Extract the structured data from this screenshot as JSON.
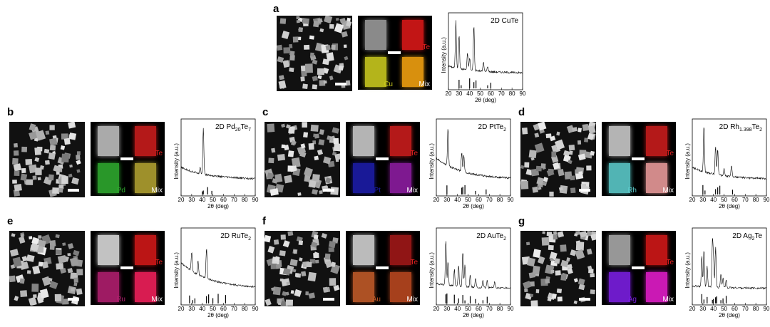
{
  "panels": [
    {
      "letter": "a",
      "title": "2D CuTe",
      "sub": "",
      "title2": "",
      "element": "Cu",
      "te": "Te",
      "mix": "Mix",
      "colors": {
        "el": "#c8c81e",
        "te": "#d81818",
        "mix": "#f0a010",
        "grey": "#9a9a9a"
      },
      "ticks": [
        "20",
        "30",
        "40",
        "50",
        "60",
        "70",
        "80",
        "90"
      ],
      "refs": [
        30,
        32,
        40,
        44,
        46,
        57,
        60
      ],
      "peaks": [
        [
          27,
          1.0
        ],
        [
          30,
          0.7
        ],
        [
          38,
          0.35
        ],
        [
          44,
          0.95
        ],
        [
          40,
          0.25
        ],
        [
          53,
          0.2
        ],
        [
          57,
          0.12
        ]
      ],
      "bg": 0.15
    },
    {
      "letter": "b",
      "title": "2D Pd",
      "sub": "20",
      "title2": "Te",
      "sub2": "7",
      "element": "Pd",
      "te": "Te",
      "mix": "Mix",
      "colors": {
        "el": "#2ea82e",
        "te": "#c81c1c",
        "mix": "#b0a030",
        "grey": "#bdbdbd"
      },
      "ticks": [
        "20",
        "30",
        "40",
        "50",
        "60",
        "70",
        "80",
        "90"
      ],
      "refs": [
        40,
        41,
        45,
        49
      ],
      "peaks": [
        [
          41,
          1.0
        ],
        [
          38,
          0.15
        ]
      ],
      "bg": 0.25
    },
    {
      "letter": "c",
      "title": "2D PtTe",
      "sub": "2",
      "title2": "",
      "element": "Pt",
      "te": "Te",
      "mix": "Mix",
      "colors": {
        "el": "#1c1ca8",
        "te": "#c81c1c",
        "mix": "#8c1ca0",
        "grey": "#c8c8c8"
      },
      "ticks": [
        "20",
        "30",
        "40",
        "50",
        "60",
        "70",
        "80",
        "90"
      ],
      "refs": [
        30,
        44,
        45,
        47,
        57,
        67
      ],
      "peaks": [
        [
          31,
          0.8
        ],
        [
          44,
          0.4
        ],
        [
          46,
          0.35
        ]
      ],
      "bg": 0.45
    },
    {
      "letter": "d",
      "title": "2D Rh",
      "sub": "1.398",
      "title2": "Te",
      "sub2": "2",
      "element": "Rh",
      "te": "Te",
      "mix": "Mix",
      "colors": {
        "el": "#5ac8c8",
        "te": "#c81c1c",
        "mix": "#e89a9a",
        "grey": "#c8c8c8"
      },
      "ticks": [
        "20",
        "30",
        "40",
        "50",
        "60",
        "70",
        "80",
        "90"
      ],
      "refs": [
        30,
        32,
        42,
        44,
        46,
        58
      ],
      "peaks": [
        [
          31,
          1.0
        ],
        [
          42,
          0.6
        ],
        [
          44,
          0.55
        ],
        [
          57,
          0.25
        ],
        [
          50,
          0.15
        ]
      ],
      "bg": 0.25
    },
    {
      "letter": "e",
      "title": "2D RuTe",
      "sub": "2",
      "title2": "",
      "element": "Ru",
      "te": "Te",
      "mix": "Mix",
      "colors": {
        "el": "#b01e6e",
        "te": "#d01818",
        "mix": "#f0205a",
        "grey": "#d8d8d8"
      },
      "ticks": [
        "20",
        "30",
        "40",
        "50",
        "60",
        "70",
        "80",
        "90"
      ],
      "refs": [
        28,
        31,
        33,
        44,
        46,
        50,
        55,
        62
      ],
      "peaks": [
        [
          30,
          0.4
        ],
        [
          36,
          0.3
        ],
        [
          44,
          0.65
        ]
      ],
      "bg": 0.55
    },
    {
      "letter": "f",
      "title": "2D AuTe",
      "sub": "2",
      "title2": "",
      "element": "Au",
      "te": "Te",
      "mix": "Mix",
      "colors": {
        "el": "#c05a28",
        "te": "#a01818",
        "mix": "#b84820",
        "grey": "#d0d0d0"
      },
      "ticks": [
        "20",
        "30",
        "40",
        "50",
        "60",
        "70",
        "80",
        "90"
      ],
      "refs": [
        29,
        30,
        37,
        41,
        45,
        47,
        52,
        57,
        64,
        68
      ],
      "peaks": [
        [
          29,
          0.95
        ],
        [
          31,
          0.5
        ],
        [
          37,
          0.35
        ],
        [
          41,
          0.45
        ],
        [
          45,
          0.75
        ],
        [
          47,
          0.45
        ],
        [
          52,
          0.25
        ],
        [
          57,
          0.2
        ],
        [
          64,
          0.15
        ],
        [
          68,
          0.15
        ],
        [
          75,
          0.12
        ]
      ],
      "bg": 0.1
    },
    {
      "letter": "g",
      "title": "2D Ag",
      "sub": "2",
      "title2": "Te",
      "sub2": "",
      "element": "Ag",
      "te": "Te",
      "mix": "Mix",
      "colors": {
        "el": "#7a1ee0",
        "te": "#d01818",
        "mix": "#e01cc8",
        "grey": "#a8a8a8"
      },
      "ticks": [
        "20",
        "30",
        "40",
        "50",
        "60",
        "70",
        "80",
        "90"
      ],
      "refs": [
        29,
        31,
        34,
        39,
        40,
        42,
        43,
        47,
        49,
        52
      ],
      "peaks": [
        [
          29,
          0.65
        ],
        [
          31,
          0.8
        ],
        [
          34,
          0.45
        ],
        [
          39,
          0.95
        ],
        [
          40,
          0.6
        ],
        [
          42,
          0.85
        ],
        [
          47,
          0.3
        ],
        [
          49,
          0.2
        ],
        [
          52,
          0.15
        ]
      ],
      "bg": 0.05
    }
  ],
  "axis": {
    "ylabel": "Intensity (a.u.)",
    "xlabel": "2θ (deg)"
  }
}
